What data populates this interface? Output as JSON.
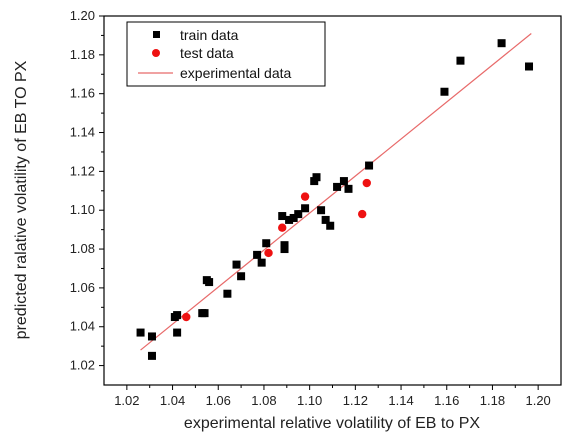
{
  "chart_data": {
    "type": "scatter",
    "title": "",
    "xlabel": "experimental relative volatility of EB to PX",
    "ylabel": "predicted ralative volatility of EB TO PX",
    "xlim": [
      1.01,
      1.21
    ],
    "ylim": [
      1.01,
      1.2
    ],
    "x_ticks": [
      "1.02",
      "1.04",
      "1.06",
      "1.08",
      "1.10",
      "1.12",
      "1.14",
      "1.16",
      "1.18",
      "1.20"
    ],
    "y_ticks": [
      "1.02",
      "1.04",
      "1.06",
      "1.08",
      "1.10",
      "1.12",
      "1.14",
      "1.16",
      "1.18",
      "1.20"
    ],
    "x_tick_values": [
      1.02,
      1.04,
      1.06,
      1.08,
      1.1,
      1.12,
      1.14,
      1.16,
      1.18,
      1.2
    ],
    "y_tick_values": [
      1.02,
      1.04,
      1.06,
      1.08,
      1.1,
      1.12,
      1.14,
      1.16,
      1.18,
      1.2
    ],
    "grid": false,
    "legend_position": "top-left",
    "colors": {
      "train": "#000000",
      "test": "#ee1111",
      "experimental": "#e86a6a"
    },
    "series": [
      {
        "name": "train data",
        "marker": "square",
        "points": [
          [
            1.026,
            1.037
          ],
          [
            1.031,
            1.035
          ],
          [
            1.031,
            1.025
          ],
          [
            1.041,
            1.045
          ],
          [
            1.042,
            1.046
          ],
          [
            1.042,
            1.037
          ],
          [
            1.053,
            1.047
          ],
          [
            1.054,
            1.047
          ],
          [
            1.055,
            1.064
          ],
          [
            1.056,
            1.063
          ],
          [
            1.064,
            1.057
          ],
          [
            1.068,
            1.072
          ],
          [
            1.07,
            1.066
          ],
          [
            1.077,
            1.077
          ],
          [
            1.079,
            1.073
          ],
          [
            1.081,
            1.083
          ],
          [
            1.088,
            1.097
          ],
          [
            1.089,
            1.082
          ],
          [
            1.089,
            1.08
          ],
          [
            1.091,
            1.095
          ],
          [
            1.093,
            1.096
          ],
          [
            1.095,
            1.098
          ],
          [
            1.098,
            1.101
          ],
          [
            1.102,
            1.115
          ],
          [
            1.103,
            1.117
          ],
          [
            1.105,
            1.1
          ],
          [
            1.107,
            1.095
          ],
          [
            1.109,
            1.092
          ],
          [
            1.112,
            1.112
          ],
          [
            1.115,
            1.115
          ],
          [
            1.117,
            1.111
          ],
          [
            1.126,
            1.123
          ],
          [
            1.159,
            1.161
          ],
          [
            1.166,
            1.177
          ],
          [
            1.184,
            1.186
          ],
          [
            1.196,
            1.174
          ]
        ]
      },
      {
        "name": "test data",
        "marker": "circle",
        "points": [
          [
            1.046,
            1.045
          ],
          [
            1.082,
            1.078
          ],
          [
            1.088,
            1.091
          ],
          [
            1.098,
            1.107
          ],
          [
            1.123,
            1.098
          ],
          [
            1.125,
            1.114
          ]
        ]
      },
      {
        "name": "experimental data",
        "marker": "line",
        "points": [
          [
            1.026,
            1.028
          ],
          [
            1.197,
            1.191
          ]
        ]
      }
    ]
  }
}
